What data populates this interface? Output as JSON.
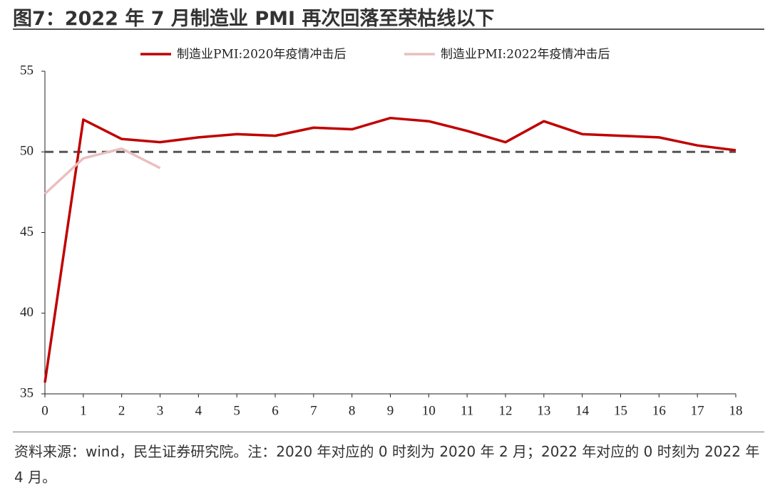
{
  "chart_data": {
    "type": "line",
    "title": "图7：2022 年 7 月制造业 PMI 再次回落至荣枯线以下",
    "x": [
      0,
      1,
      2,
      3,
      4,
      5,
      6,
      7,
      8,
      9,
      10,
      11,
      12,
      13,
      14,
      15,
      16,
      17,
      18
    ],
    "series": [
      {
        "name": "制造业PMI:2020年疫情冲击后",
        "color": "#c00000",
        "values": [
          35.7,
          52.0,
          50.8,
          50.6,
          50.9,
          51.1,
          51.0,
          51.5,
          51.4,
          52.1,
          51.9,
          51.3,
          50.6,
          51.9,
          51.1,
          51.0,
          50.9,
          50.4,
          50.1
        ]
      },
      {
        "name": "制造业PMI:2022年疫情冲击后",
        "color": "#eabfbf",
        "values": [
          47.4,
          49.6,
          50.2,
          49.0,
          null,
          null,
          null,
          null,
          null,
          null,
          null,
          null,
          null,
          null,
          null,
          null,
          null,
          null,
          null
        ]
      }
    ],
    "reference_line": 50,
    "xlim": [
      0,
      18
    ],
    "xticks": [
      0,
      1,
      2,
      3,
      4,
      5,
      6,
      7,
      8,
      9,
      10,
      11,
      12,
      13,
      14,
      15,
      16,
      17,
      18
    ],
    "ylim": [
      35,
      55
    ],
    "yticks": [
      35,
      40,
      45,
      50,
      55
    ],
    "legend": "top",
    "source": "资料来源：wind，民生证券研究院。注：2020 年对应的 0 时刻为 2020 年 2 月；2022 年对应的 0 时刻为 2022 年 4 月。"
  }
}
